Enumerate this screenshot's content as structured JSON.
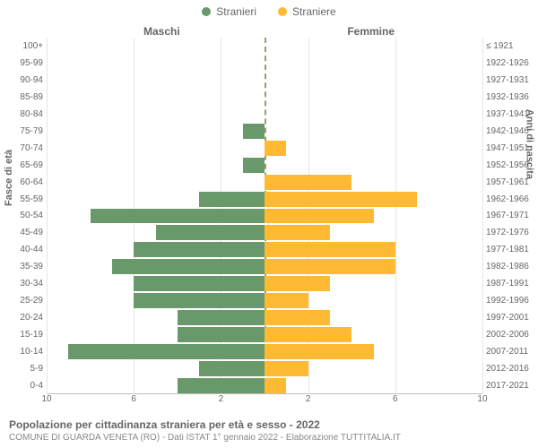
{
  "legend": {
    "male_label": "Stranieri",
    "female_label": "Straniere"
  },
  "colors": {
    "male": "#69996a",
    "female": "#ffb933",
    "grid": "#e6e6e6",
    "axis_text": "#666666",
    "center_line": "#5a5a00",
    "background": "#ffffff"
  },
  "headers": {
    "male": "Maschi",
    "female": "Femmine"
  },
  "axis_titles": {
    "left": "Fasce di età",
    "right": "Anni di nascita"
  },
  "pyramid": {
    "type": "population-pyramid",
    "xmax": 10,
    "xtick_step": 2,
    "xticks_left": [
      "10",
      "6",
      "2"
    ],
    "xticks_right": [
      "2",
      "6",
      "10"
    ],
    "rows": [
      {
        "age": "100+",
        "birth": "≤ 1921",
        "m": 0,
        "f": 0
      },
      {
        "age": "95-99",
        "birth": "1922-1926",
        "m": 0,
        "f": 0
      },
      {
        "age": "90-94",
        "birth": "1927-1931",
        "m": 0,
        "f": 0
      },
      {
        "age": "85-89",
        "birth": "1932-1936",
        "m": 0,
        "f": 0
      },
      {
        "age": "80-84",
        "birth": "1937-1941",
        "m": 0,
        "f": 0
      },
      {
        "age": "75-79",
        "birth": "1942-1946",
        "m": 1,
        "f": 0
      },
      {
        "age": "70-74",
        "birth": "1947-1951",
        "m": 0,
        "f": 1
      },
      {
        "age": "65-69",
        "birth": "1952-1956",
        "m": 1,
        "f": 0
      },
      {
        "age": "60-64",
        "birth": "1957-1961",
        "m": 0,
        "f": 4
      },
      {
        "age": "55-59",
        "birth": "1962-1966",
        "m": 3,
        "f": 7
      },
      {
        "age": "50-54",
        "birth": "1967-1971",
        "m": 8,
        "f": 5
      },
      {
        "age": "45-49",
        "birth": "1972-1976",
        "m": 5,
        "f": 3
      },
      {
        "age": "40-44",
        "birth": "1977-1981",
        "m": 6,
        "f": 6
      },
      {
        "age": "35-39",
        "birth": "1982-1986",
        "m": 7,
        "f": 6
      },
      {
        "age": "30-34",
        "birth": "1987-1991",
        "m": 6,
        "f": 3
      },
      {
        "age": "25-29",
        "birth": "1992-1996",
        "m": 6,
        "f": 2
      },
      {
        "age": "20-24",
        "birth": "1997-2001",
        "m": 4,
        "f": 3
      },
      {
        "age": "15-19",
        "birth": "2002-2006",
        "m": 4,
        "f": 4
      },
      {
        "age": "10-14",
        "birth": "2007-2011",
        "m": 9,
        "f": 5
      },
      {
        "age": "5-9",
        "birth": "2012-2016",
        "m": 3,
        "f": 2
      },
      {
        "age": "0-4",
        "birth": "2017-2021",
        "m": 4,
        "f": 1
      }
    ]
  },
  "footer": {
    "title": "Popolazione per cittadinanza straniera per età e sesso - 2022",
    "subtitle": "COMUNE DI GUARDA VENETA (RO) - Dati ISTAT 1° gennaio 2022 - Elaborazione TUTTITALIA.IT"
  }
}
